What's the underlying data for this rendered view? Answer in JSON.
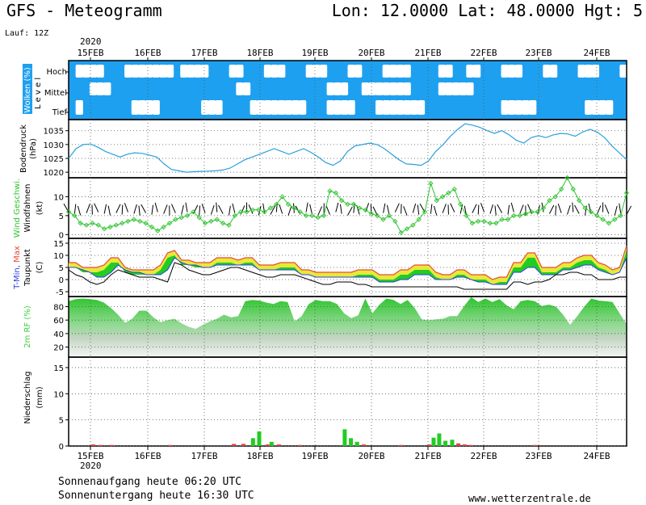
{
  "header": {
    "title": "GFS - Meteogramm",
    "coords": "Lon: 12.0000 Lat: 48.0000 Hgt: 5",
    "run": "Lauf: 12Z",
    "year": "2020"
  },
  "days": [
    "15FEB",
    "16FEB",
    "17FEB",
    "18FEB",
    "19FEB",
    "20FEB",
    "21FEB",
    "22FEB",
    "23FEB",
    "24FEB"
  ],
  "footer": {
    "sunrise": "Sonnenaufgang heute 06:20 UTC",
    "sunset": "Sonnenuntergang heute 16:30 UTC",
    "site": "www.wetterzentrale.de"
  },
  "colors": {
    "sky": "#1ea0f0",
    "pressure": "#2aa0dc",
    "wind": "#2ec42e",
    "temp_green": "#22cc22",
    "temp_yellow": "#e8e83a",
    "temp_red": "#e84a3a",
    "humidity": "#3ccf3c",
    "precip_green": "#22cc22",
    "precip_red": "#e04040"
  },
  "chart_data": [
    {
      "type": "area",
      "panel": "clouds",
      "ylabel": [
        "Wolken (%)",
        "L e v e l"
      ],
      "levels": [
        "Hoch",
        "Mittel",
        "Tief"
      ],
      "note": "cloud cover by level; white = cloud, blue = clear",
      "cover_hoch": [
        0,
        1,
        1,
        1,
        1,
        0,
        0,
        0,
        1,
        1,
        1,
        1,
        1,
        1,
        1,
        0,
        1,
        1,
        1,
        1,
        0,
        0,
        0,
        1,
        1,
        0,
        0,
        0,
        1,
        1,
        1,
        0,
        0,
        0,
        1,
        1,
        1,
        0,
        0,
        0,
        1,
        1,
        0,
        0,
        0,
        1,
        1,
        1,
        1,
        0,
        0,
        0,
        0,
        1,
        1,
        0,
        0,
        1,
        1,
        0,
        0,
        0,
        1,
        1,
        1,
        0,
        0,
        0,
        1,
        1,
        0,
        0,
        0,
        1,
        1,
        1,
        0,
        0,
        0,
        1
      ],
      "cover_mittel": [
        0,
        0,
        0,
        1,
        1,
        1,
        0,
        0,
        0,
        0,
        0,
        0,
        0,
        0,
        0,
        0,
        0,
        0,
        0,
        0,
        0,
        0,
        0,
        0,
        1,
        1,
        0,
        0,
        0,
        0,
        0,
        0,
        0,
        0,
        0,
        0,
        0,
        1,
        1,
        1,
        0,
        0,
        1,
        1,
        1,
        1,
        1,
        1,
        1,
        0,
        0,
        0,
        0,
        1,
        1,
        1,
        1,
        1,
        0,
        0,
        0,
        0,
        0,
        0,
        0,
        0,
        0,
        0,
        0,
        0,
        0,
        0,
        0,
        0,
        0,
        0,
        0,
        0,
        0,
        0
      ],
      "cover_tief": [
        0,
        1,
        0,
        0,
        0,
        0,
        0,
        0,
        0,
        1,
        1,
        1,
        1,
        0,
        0,
        0,
        0,
        0,
        0,
        1,
        1,
        1,
        0,
        0,
        0,
        0,
        1,
        1,
        1,
        1,
        1,
        1,
        1,
        1,
        0,
        0,
        0,
        1,
        1,
        1,
        1,
        0,
        0,
        0,
        1,
        1,
        1,
        1,
        1,
        1,
        1,
        0,
        0,
        0,
        0,
        0,
        0,
        0,
        0,
        0,
        0,
        0,
        1,
        1,
        1,
        1,
        1,
        0,
        0,
        0,
        0,
        0,
        0,
        0,
        1,
        1,
        1,
        1,
        0,
        0
      ]
    },
    {
      "type": "line",
      "panel": "pressure",
      "ylabel": [
        "Bodendruck",
        "(hPa)"
      ],
      "ylim": [
        1018,
        1039
      ],
      "yticks": [
        1020,
        1025,
        1030,
        1035
      ],
      "values": [
        1025,
        1028.5,
        1030,
        1030.2,
        1029,
        1027.5,
        1026.5,
        1025.5,
        1026.5,
        1027,
        1026.8,
        1026.2,
        1025.5,
        1023,
        1021,
        1020.5,
        1020,
        1020.2,
        1020.3,
        1020.4,
        1020.5,
        1020.8,
        1021.5,
        1023,
        1024.5,
        1025.5,
        1026.5,
        1027.5,
        1028.5,
        1027.5,
        1026.5,
        1027.5,
        1028.5,
        1027.2,
        1025.5,
        1023.5,
        1022.5,
        1024,
        1027.5,
        1029.5,
        1030,
        1030.5,
        1030,
        1028.5,
        1026.5,
        1024.5,
        1023,
        1022.8,
        1022.5,
        1024,
        1027.5,
        1030,
        1033,
        1035.5,
        1037.5,
        1037,
        1036.2,
        1035,
        1034,
        1035,
        1033.5,
        1031.5,
        1030.5,
        1032.5,
        1033.2,
        1032.5,
        1033.5,
        1034,
        1033.8,
        1033,
        1034.5,
        1035.5,
        1034.5,
        1032.5,
        1029.5,
        1027,
        1024.5
      ]
    },
    {
      "type": "line",
      "panel": "wind",
      "ylabel": [
        "Wind Geschwi.",
        "Windfahnen",
        "(kt)"
      ],
      "ylim": [
        -1,
        15
      ],
      "yticks": [
        0,
        5,
        10
      ],
      "values": [
        6,
        5,
        3,
        2.5,
        3,
        2.5,
        1.5,
        2,
        2.5,
        3,
        3.5,
        4,
        3.5,
        3,
        2,
        1,
        2,
        3,
        4,
        4.5,
        5,
        6,
        4.5,
        3,
        3.5,
        4,
        3,
        2.5,
        5,
        6,
        6,
        6.5,
        6.5,
        6,
        7,
        8,
        10,
        8,
        7,
        6,
        5,
        5,
        4.5,
        5,
        11.5,
        11,
        9,
        8,
        8,
        7,
        6.5,
        5.5,
        5,
        4,
        5,
        3.5,
        0.5,
        1.5,
        2.5,
        4,
        6,
        13.5,
        9,
        10,
        11,
        12,
        8,
        5,
        3,
        3.5,
        3.5,
        3,
        3,
        4,
        4,
        5,
        5,
        5.5,
        6,
        6,
        7,
        9,
        10,
        12,
        15,
        12,
        9,
        7,
        6,
        5,
        4,
        3,
        4,
        5,
        11
      ]
    },
    {
      "type": "area",
      "panel": "temperature",
      "ylabel": [
        "T-Min, Max",
        "Taupunkt",
        "(C)"
      ],
      "ylim": [
        -7,
        17
      ],
      "yticks": [
        -5,
        0,
        5,
        10,
        15
      ],
      "tmax": [
        7,
        7,
        5,
        5,
        5,
        6,
        9,
        9,
        5,
        4,
        4,
        4,
        4,
        6,
        11,
        12,
        8,
        8,
        7,
        7,
        7,
        9,
        9,
        9,
        8,
        9,
        9,
        6,
        6,
        6,
        7,
        7,
        7,
        4,
        4,
        3,
        3,
        3,
        3,
        3,
        3,
        4,
        4,
        4,
        2,
        2,
        2,
        4,
        4,
        6,
        6,
        6,
        3,
        2,
        2,
        4,
        4,
        2,
        2,
        2,
        0,
        1,
        1,
        7,
        7,
        11,
        11,
        5,
        5,
        5,
        7,
        7,
        9,
        10,
        10,
        7,
        6,
        4,
        5,
        14
      ],
      "tmin": [
        5,
        5,
        4,
        3,
        1,
        1,
        3,
        6,
        4,
        3,
        3,
        2,
        2,
        2,
        4,
        9,
        7,
        6,
        6,
        5,
        5,
        6,
        6,
        6,
        6,
        6,
        6,
        4,
        4,
        4,
        4,
        4,
        4,
        2,
        2,
        1,
        1,
        1,
        1,
        1,
        1,
        1,
        1,
        1,
        -1,
        -1,
        -1,
        0,
        0,
        2,
        2,
        2,
        0,
        0,
        0,
        1,
        1,
        0,
        -1,
        -1,
        -2,
        -2,
        -2,
        3,
        3,
        5,
        5,
        2,
        2,
        2,
        4,
        4,
        5,
        6,
        6,
        4,
        3,
        2,
        3,
        9
      ],
      "dewpoint": [
        4,
        2,
        1,
        -1,
        -2,
        -1,
        2,
        4,
        3,
        2,
        1,
        1,
        1,
        0,
        -1,
        7,
        6,
        4,
        3,
        2,
        2,
        3,
        4,
        5,
        5,
        4,
        3,
        2,
        1,
        1,
        2,
        2,
        2,
        1,
        0,
        -1,
        -2,
        -2,
        -1,
        -1,
        -1,
        -2,
        -2,
        -3,
        -3,
        -3,
        -3,
        -3,
        -3,
        -3,
        -3,
        -3,
        -3,
        -3,
        -3,
        -3,
        -4,
        -4,
        -4,
        -4,
        -4,
        -4,
        -4,
        -1,
        -1,
        -2,
        -1,
        -1,
        0,
        2,
        2,
        3,
        3,
        2,
        2,
        0,
        0,
        0,
        1,
        1
      ]
    },
    {
      "type": "area",
      "panel": "humidity",
      "ylabel": [
        "2m RF (%)"
      ],
      "ylim": [
        5,
        95
      ],
      "yticks": [
        20,
        40,
        60,
        80
      ],
      "values": [
        88,
        91,
        92,
        91,
        90,
        86,
        78,
        68,
        56,
        62,
        74,
        74,
        64,
        57,
        60,
        62,
        55,
        50,
        47,
        53,
        58,
        62,
        68,
        64,
        66,
        88,
        90,
        89,
        86,
        84,
        88,
        87,
        58,
        66,
        84,
        90,
        88,
        88,
        84,
        70,
        63,
        67,
        92,
        70,
        83,
        92,
        90,
        84,
        90,
        78,
        61,
        60,
        61,
        62,
        66,
        66,
        81,
        94,
        87,
        92,
        87,
        91,
        82,
        76,
        88,
        90,
        88,
        81,
        83,
        80,
        68,
        53,
        66,
        80,
        92,
        89,
        88,
        87,
        70,
        54
      ],
      "valuesLower": [
        82,
        85,
        86,
        85,
        84,
        80,
        72,
        62,
        50,
        56,
        68,
        68,
        58,
        51,
        54,
        56,
        49,
        44,
        41,
        47,
        52,
        56,
        62,
        58,
        60,
        82,
        84,
        83,
        80,
        78,
        82,
        81,
        52,
        60,
        78,
        84,
        82,
        82,
        78,
        64,
        57,
        61,
        86,
        64,
        77,
        86,
        84,
        78,
        84,
        72,
        55,
        54,
        55,
        56,
        60,
        60,
        75,
        88,
        81,
        86,
        81,
        85,
        76,
        70,
        82,
        84,
        82,
        75,
        77,
        74,
        62,
        47,
        60,
        74,
        86,
        83,
        82,
        81,
        64,
        48
      ]
    },
    {
      "type": "bar",
      "panel": "precipitation",
      "ylabel": [
        "Niederschlag",
        "(mm)"
      ],
      "ylim": [
        0,
        17
      ],
      "yticks": [
        0,
        5,
        10,
        15
      ],
      "bars": [
        {
          "t": 0.05,
          "v": 0.3,
          "c": "red"
        },
        {
          "t": 0.18,
          "v": 0.2,
          "c": "red"
        },
        {
          "t": 0.38,
          "v": 0.2,
          "c": "red"
        },
        {
          "t": 1.42,
          "v": 0.2,
          "c": "red"
        },
        {
          "t": 2.55,
          "v": 0.4,
          "c": "red"
        },
        {
          "t": 2.72,
          "v": 0.4,
          "c": "red"
        },
        {
          "t": 2.89,
          "v": 1.5,
          "c": "green"
        },
        {
          "t": 3.0,
          "v": 2.8,
          "c": "green"
        },
        {
          "t": 3.15,
          "v": 0.3,
          "c": "red"
        },
        {
          "t": 3.22,
          "v": 0.8,
          "c": "green"
        },
        {
          "t": 3.35,
          "v": 0.3,
          "c": "red"
        },
        {
          "t": 3.72,
          "v": 0.2,
          "c": "red"
        },
        {
          "t": 4.52,
          "v": 3.2,
          "c": "green"
        },
        {
          "t": 4.63,
          "v": 1.5,
          "c": "green"
        },
        {
          "t": 4.74,
          "v": 0.8,
          "c": "green"
        },
        {
          "t": 4.86,
          "v": 0.3,
          "c": "red"
        },
        {
          "t": 5.52,
          "v": 0.2,
          "c": "red"
        },
        {
          "t": 6.02,
          "v": 0.3,
          "c": "red"
        },
        {
          "t": 6.1,
          "v": 1.6,
          "c": "green"
        },
        {
          "t": 6.2,
          "v": 2.4,
          "c": "green"
        },
        {
          "t": 6.31,
          "v": 1.0,
          "c": "green"
        },
        {
          "t": 6.43,
          "v": 1.2,
          "c": "green"
        },
        {
          "t": 6.54,
          "v": 0.5,
          "c": "red"
        },
        {
          "t": 6.65,
          "v": 0.3,
          "c": "red"
        },
        {
          "t": 6.76,
          "v": 0.2,
          "c": "red"
        },
        {
          "t": 7.9,
          "v": 0.2,
          "c": "red"
        }
      ]
    }
  ]
}
